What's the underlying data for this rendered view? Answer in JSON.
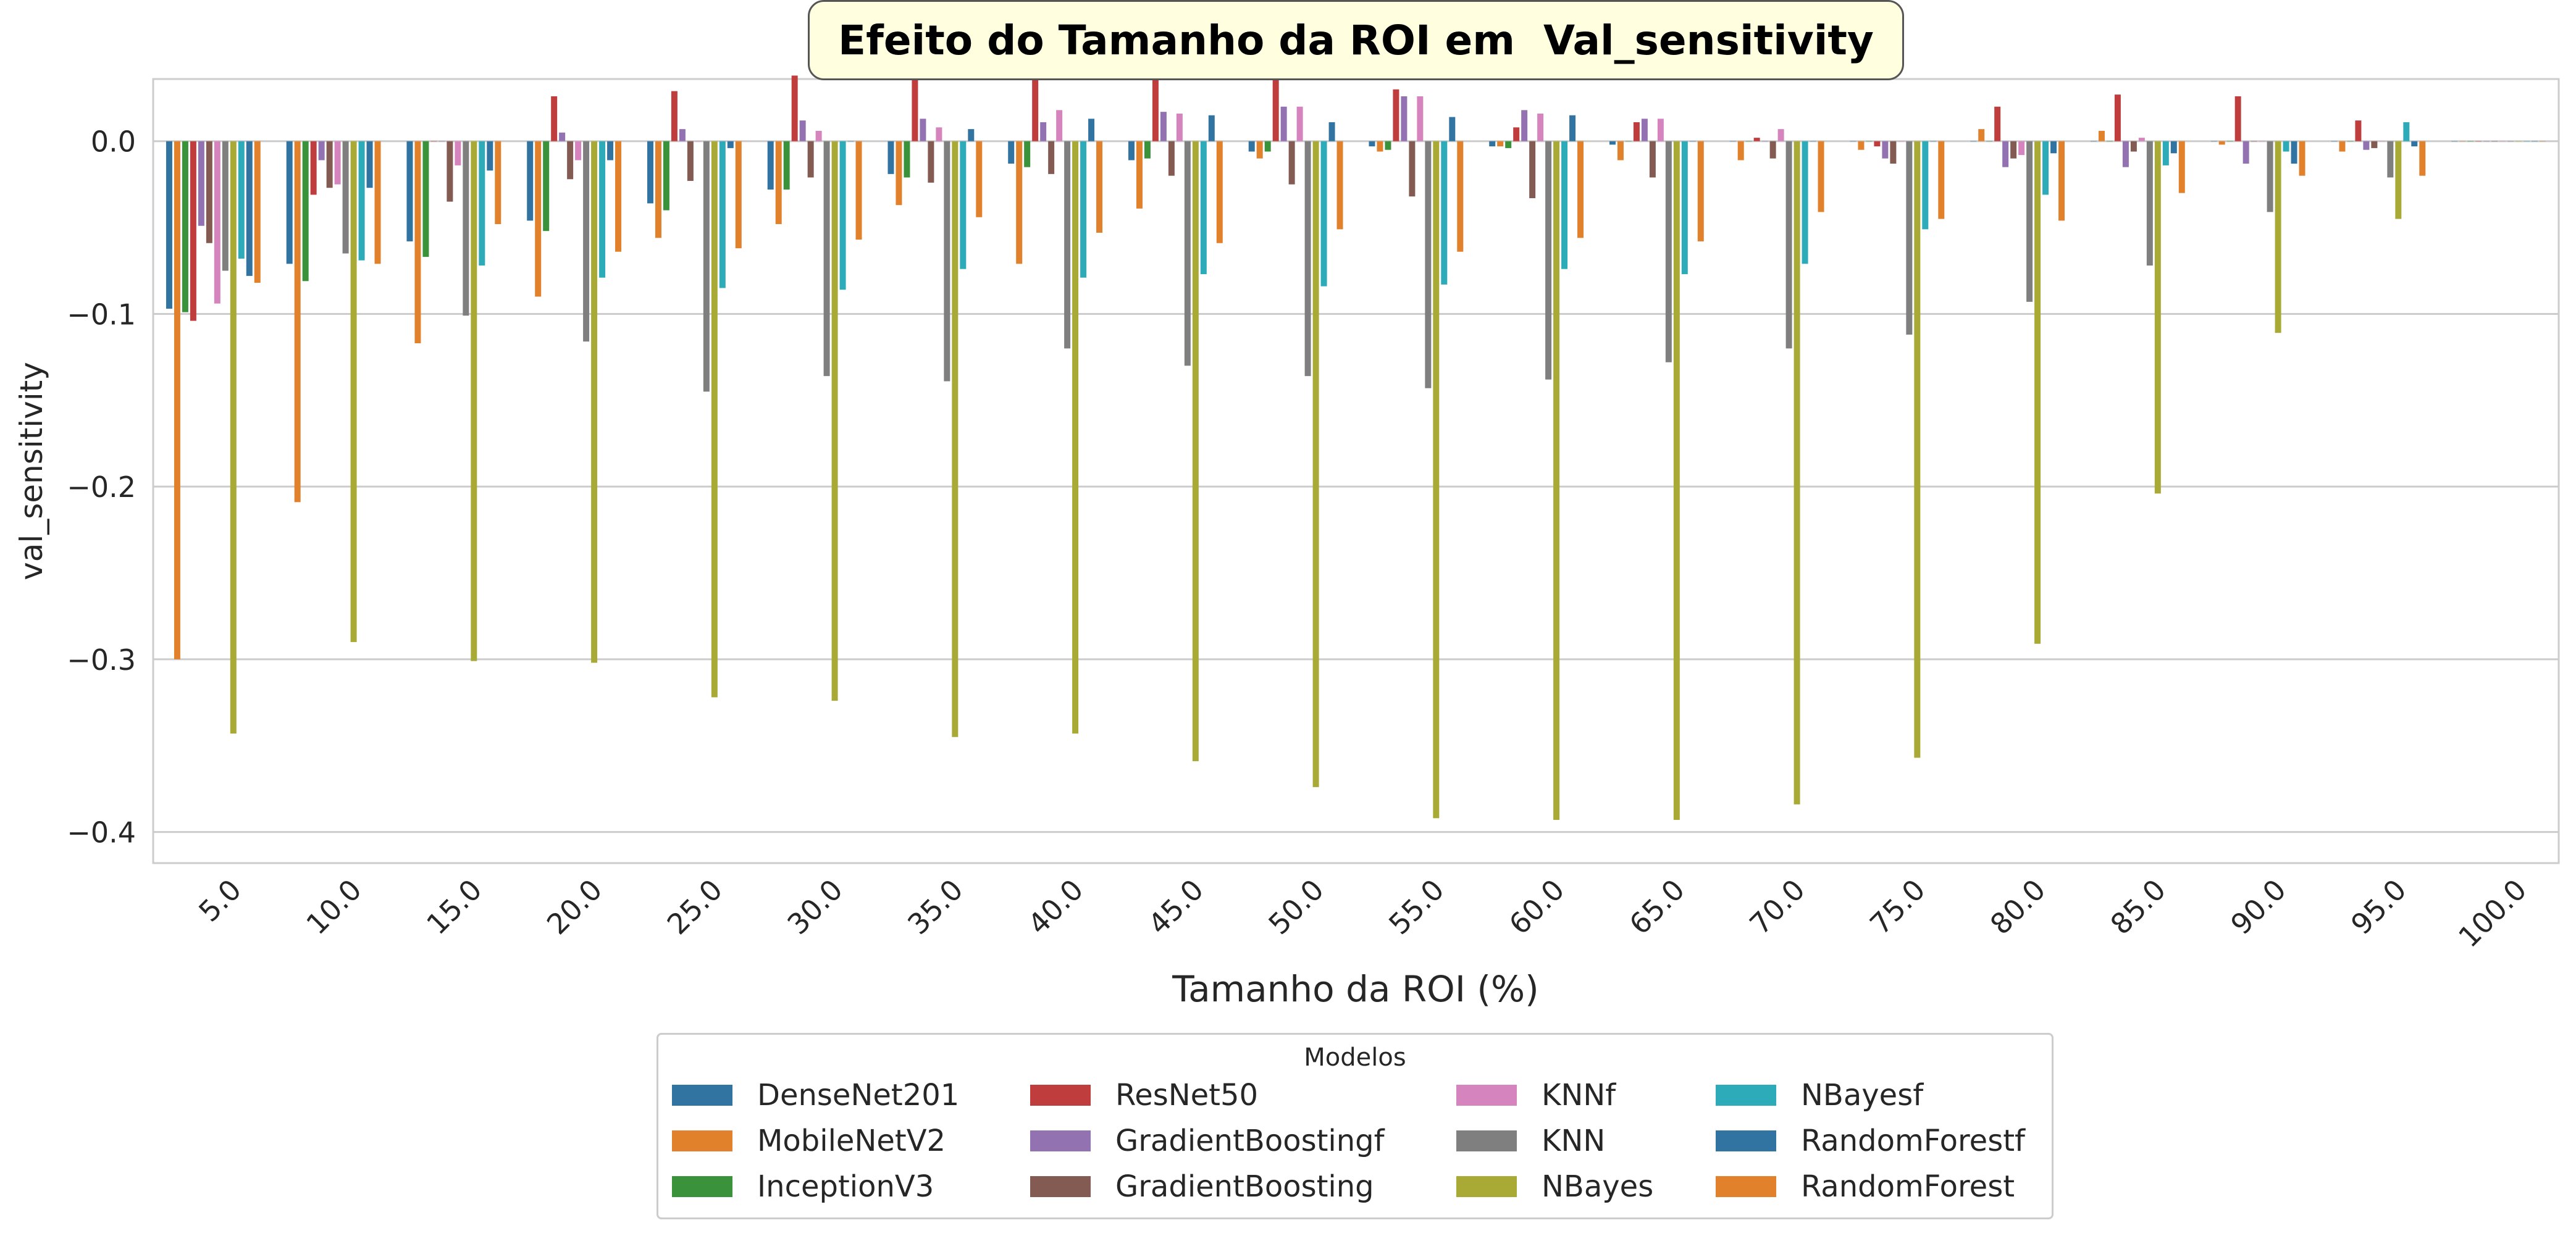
{
  "colors": {
    "DenseNet201": "#3274a1",
    "MobileNetV2": "#e1812c",
    "InceptionV3": "#3a923a",
    "ResNet50": "#c03d3e",
    "GradientBoostingf": "#9372b2",
    "GradientBoosting": "#845b53",
    "KNNf": "#d684bd",
    "KNN": "#7f7f7f",
    "NBayes": "#a9aa35",
    "NBayesf": "#2eabb8",
    "RandomForestf": "#3274a1",
    "RandomForest": "#e1812c"
  },
  "chart_data": {
    "type": "bar",
    "title": "Efeito do Tamanho da ROI em  Val_sensitivity",
    "xlabel": "Tamanho da ROI (%)",
    "ylabel": "val_sensitivity",
    "ylim": [
      -0.418,
      0.036
    ],
    "yticks": [
      "0.0",
      "−0.1",
      "−0.2",
      "−0.3",
      "−0.4"
    ],
    "grid": true,
    "legend_title": "Modelos",
    "legend_placement": "below",
    "categories": [
      "5.0",
      "10.0",
      "15.0",
      "20.0",
      "25.0",
      "30.0",
      "35.0",
      "40.0",
      "45.0",
      "50.0",
      "55.0",
      "60.0",
      "65.0",
      "70.0",
      "75.0",
      "80.0",
      "85.0",
      "90.0",
      "95.0",
      "100.0"
    ],
    "series": [
      {
        "name": "DenseNet201",
        "values": [
          -0.097,
          -0.071,
          -0.058,
          -0.046,
          -0.036,
          -0.028,
          -0.019,
          -0.013,
          -0.011,
          -0.006,
          -0.003,
          -0.003,
          -0.002,
          0.0,
          0.0,
          0.0,
          0.0,
          0.0,
          0.0,
          0.0
        ]
      },
      {
        "name": "MobileNetV2",
        "values": [
          -0.3,
          -0.209,
          -0.117,
          -0.09,
          -0.056,
          -0.048,
          -0.037,
          -0.071,
          -0.039,
          -0.01,
          -0.006,
          -0.003,
          -0.011,
          -0.011,
          -0.005,
          0.007,
          0.006,
          -0.002,
          -0.006,
          0.0
        ]
      },
      {
        "name": "InceptionV3",
        "values": [
          -0.099,
          -0.081,
          -0.067,
          -0.052,
          -0.04,
          -0.028,
          -0.021,
          -0.015,
          -0.01,
          -0.006,
          -0.005,
          -0.004,
          0.0,
          0.0,
          0.0,
          0.0,
          0.0,
          0.0,
          0.0,
          0.0
        ]
      },
      {
        "name": "ResNet50",
        "values": [
          -0.104,
          -0.031,
          0.0,
          0.026,
          0.029,
          0.038,
          0.036,
          0.048,
          0.05,
          0.043,
          0.03,
          0.008,
          0.011,
          0.002,
          -0.003,
          0.02,
          0.027,
          0.026,
          0.012,
          0.0
        ]
      },
      {
        "name": "GradientBoostingf",
        "values": [
          -0.049,
          -0.011,
          0.0,
          0.005,
          0.007,
          0.012,
          0.013,
          0.011,
          0.017,
          0.02,
          0.026,
          0.018,
          0.013,
          0.0,
          -0.01,
          -0.015,
          -0.015,
          -0.013,
          -0.005,
          0.0
        ]
      },
      {
        "name": "GradientBoosting",
        "values": [
          -0.059,
          -0.027,
          -0.035,
          -0.022,
          -0.023,
          -0.021,
          -0.024,
          -0.019,
          -0.02,
          -0.025,
          -0.032,
          -0.033,
          -0.021,
          -0.01,
          -0.013,
          -0.01,
          -0.006,
          0.0,
          -0.004,
          0.0
        ]
      },
      {
        "name": "KNNf",
        "values": [
          -0.094,
          -0.025,
          -0.014,
          -0.011,
          0.0,
          0.006,
          0.008,
          0.018,
          0.016,
          0.02,
          0.026,
          0.016,
          0.013,
          0.007,
          0.0,
          -0.008,
          0.002,
          0.0,
          0.0,
          0.0
        ]
      },
      {
        "name": "KNN",
        "values": [
          -0.075,
          -0.065,
          -0.101,
          -0.116,
          -0.145,
          -0.136,
          -0.139,
          -0.12,
          -0.13,
          -0.136,
          -0.143,
          -0.138,
          -0.128,
          -0.12,
          -0.112,
          -0.093,
          -0.072,
          -0.041,
          -0.021,
          0.0
        ]
      },
      {
        "name": "NBayes",
        "values": [
          -0.343,
          -0.29,
          -0.301,
          -0.302,
          -0.322,
          -0.324,
          -0.345,
          -0.343,
          -0.359,
          -0.374,
          -0.392,
          -0.393,
          -0.393,
          -0.384,
          -0.357,
          -0.291,
          -0.204,
          -0.111,
          -0.045,
          0.0
        ]
      },
      {
        "name": "NBayesf",
        "values": [
          -0.068,
          -0.069,
          -0.072,
          -0.079,
          -0.085,
          -0.086,
          -0.074,
          -0.079,
          -0.077,
          -0.084,
          -0.083,
          -0.074,
          -0.077,
          -0.071,
          -0.051,
          -0.031,
          -0.014,
          -0.006,
          0.011,
          0.0
        ]
      },
      {
        "name": "RandomForestf",
        "values": [
          -0.078,
          -0.027,
          -0.017,
          -0.011,
          -0.004,
          0.0,
          0.007,
          0.013,
          0.015,
          0.011,
          0.014,
          0.015,
          0.0,
          0.0,
          0.0,
          -0.007,
          -0.007,
          -0.013,
          -0.003,
          0.0
        ]
      },
      {
        "name": "RandomForest",
        "values": [
          -0.082,
          -0.071,
          -0.048,
          -0.064,
          -0.062,
          -0.057,
          -0.044,
          -0.053,
          -0.059,
          -0.051,
          -0.064,
          -0.056,
          -0.058,
          -0.041,
          -0.045,
          -0.046,
          -0.03,
          -0.02,
          -0.02,
          0.0
        ]
      }
    ]
  }
}
